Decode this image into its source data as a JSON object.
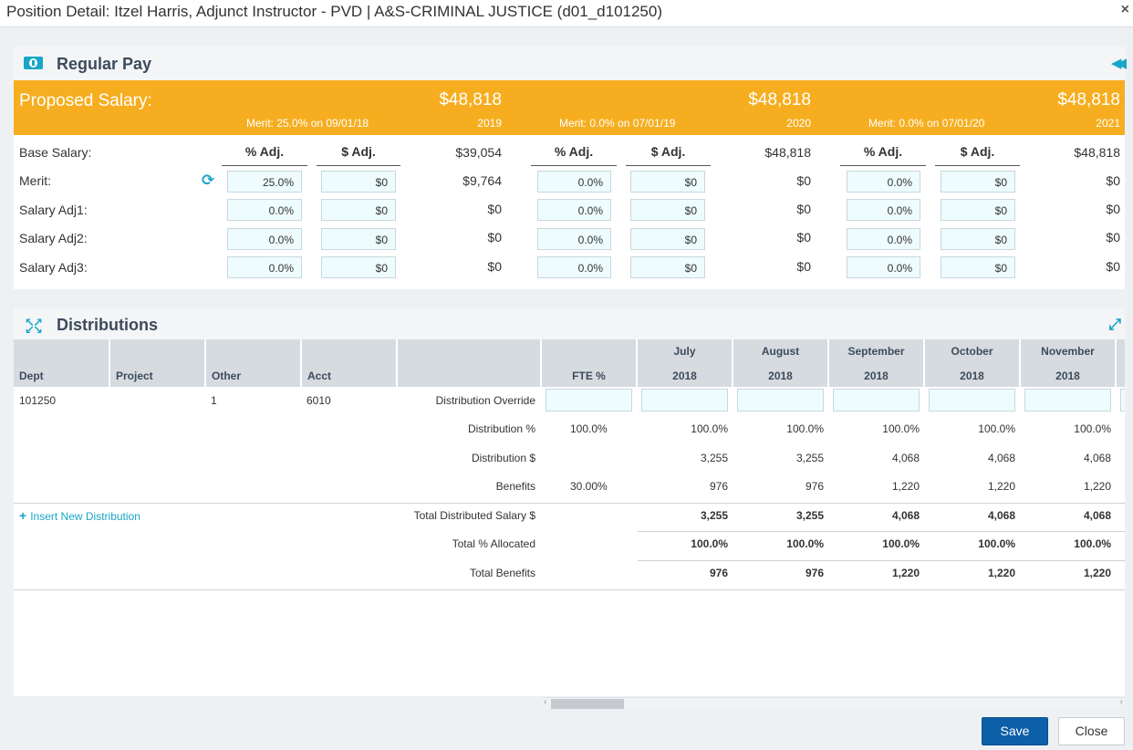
{
  "window": {
    "title": "Position Detail: Itzel Harris, Adjunct Instructor - PVD | A&S-CRIMINAL JUSTICE (d01_d101250)",
    "close_glyph": "×"
  },
  "regular_pay": {
    "title": "Regular Pay",
    "proposed_label": "Proposed Salary:",
    "years": [
      {
        "amount": "$48,818",
        "merit_note": "Merit: 25.0% on 09/01/18",
        "year": "2019"
      },
      {
        "amount": "$48,818",
        "merit_note": "Merit: 0.0% on 07/01/19",
        "year": "2020"
      },
      {
        "amount": "$48,818",
        "merit_note": "Merit: 0.0% on 07/01/20",
        "year": "2021"
      }
    ],
    "col_pct": "% Adj.",
    "col_amt": "$ Adj.",
    "base_label": "Base Salary:",
    "base_values": [
      "$39,054",
      "$48,818",
      "$48,818"
    ],
    "rows": [
      {
        "label": "Merit:",
        "cells": [
          {
            "pct": "25.0%",
            "amt": "$0",
            "total": "$9,764"
          },
          {
            "pct": "0.0%",
            "amt": "$0",
            "total": "$0"
          },
          {
            "pct": "0.0%",
            "amt": "$0",
            "total": "$0"
          }
        ]
      },
      {
        "label": "Salary Adj1:",
        "cells": [
          {
            "pct": "0.0%",
            "amt": "$0",
            "total": "$0"
          },
          {
            "pct": "0.0%",
            "amt": "$0",
            "total": "$0"
          },
          {
            "pct": "0.0%",
            "amt": "$0",
            "total": "$0"
          }
        ]
      },
      {
        "label": "Salary Adj2:",
        "cells": [
          {
            "pct": "0.0%",
            "amt": "$0",
            "total": "$0"
          },
          {
            "pct": "0.0%",
            "amt": "$0",
            "total": "$0"
          },
          {
            "pct": "0.0%",
            "amt": "$0",
            "total": "$0"
          }
        ]
      },
      {
        "label": "Salary Adj3:",
        "cells": [
          {
            "pct": "0.0%",
            "amt": "$0",
            "total": "$0"
          },
          {
            "pct": "0.0%",
            "amt": "$0",
            "total": "$0"
          },
          {
            "pct": "0.0%",
            "amt": "$0",
            "total": "$0"
          }
        ]
      }
    ]
  },
  "distributions": {
    "title": "Distributions",
    "headers": {
      "dept": "Dept",
      "project": "Project",
      "other": "Other",
      "acct": "Acct",
      "fte": "FTE %"
    },
    "months": [
      {
        "name": "July",
        "year": "2018"
      },
      {
        "name": "August",
        "year": "2018"
      },
      {
        "name": "September",
        "year": "2018"
      },
      {
        "name": "October",
        "year": "2018"
      },
      {
        "name": "November",
        "year": "2018"
      }
    ],
    "row": {
      "dept": "101250",
      "project": "",
      "other": "1",
      "acct": "6010"
    },
    "line_labels": {
      "override": "Distribution Override",
      "pct": "Distribution %",
      "amt": "Distribution $",
      "benefits": "Benefits",
      "total_salary": "Total Distributed Salary $",
      "total_pct": "Total % Allocated",
      "total_benefits": "Total Benefits"
    },
    "fte_pct": "100.0%",
    "fte_benefits": "30.00%",
    "dist_pct": [
      "100.0%",
      "100.0%",
      "100.0%",
      "100.0%",
      "100.0%"
    ],
    "dist_amt": [
      "3,255",
      "3,255",
      "4,068",
      "4,068",
      "4,068"
    ],
    "benefits": [
      "976",
      "976",
      "1,220",
      "1,220",
      "1,220"
    ],
    "total_salary": [
      "3,255",
      "3,255",
      "4,068",
      "4,068",
      "4,068"
    ],
    "total_pct": [
      "100.0%",
      "100.0%",
      "100.0%",
      "100.0%",
      "100.0%"
    ],
    "total_benefits": [
      "976",
      "976",
      "1,220",
      "1,220",
      "1,220"
    ],
    "insert_label": "Insert New Distribution"
  },
  "footer": {
    "save": "Save",
    "close": "Close"
  }
}
